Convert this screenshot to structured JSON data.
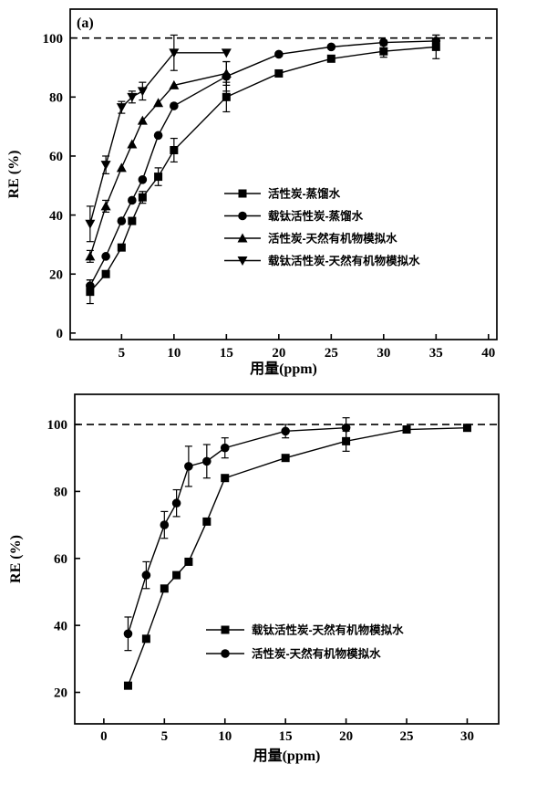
{
  "figure": {
    "background": "#ffffff",
    "ink_color": "#000000",
    "legend_text_color": "#e60000"
  },
  "chart_data": [
    {
      "type": "line",
      "panel_label": "(a)",
      "xlabel": "用量(ppm)",
      "ylabel": "RE (%)",
      "xlim": [
        0.1,
        40.8
      ],
      "ylim": [
        -2.2,
        109.8
      ],
      "xticks": [
        5,
        10,
        15,
        20,
        25,
        30,
        35,
        40
      ],
      "yticks": [
        0,
        20,
        40,
        60,
        80,
        100
      ],
      "reference_line_y": 100,
      "grid": false,
      "legend_position": "center-right",
      "series": [
        {
          "name": "活性炭-蒸馏水",
          "marker": "square",
          "x": [
            2,
            3.5,
            5,
            6,
            7,
            8.5,
            10,
            15,
            20,
            25,
            30,
            35
          ],
          "y": [
            14,
            20,
            29,
            38,
            46,
            53,
            62,
            80,
            88,
            93,
            95.5,
            97
          ],
          "yerr": [
            4,
            0,
            0,
            0,
            2,
            3,
            4,
            5,
            0,
            0,
            2,
            4
          ]
        },
        {
          "name": "载钛活性炭-蒸馏水",
          "marker": "circle",
          "x": [
            2,
            3.5,
            5,
            6,
            7,
            8.5,
            10,
            15,
            20,
            25,
            30,
            35
          ],
          "y": [
            16,
            26,
            38,
            45,
            52,
            67,
            77,
            87,
            94.5,
            97,
            98.5,
            99
          ],
          "yerr": [
            2,
            0,
            0,
            0,
            0,
            0,
            0,
            5,
            0,
            0,
            0,
            2
          ]
        },
        {
          "name": "活性炭-天然有机物模拟水",
          "marker": "triangle-up",
          "x": [
            2,
            3.5,
            5,
            6,
            7,
            8.5,
            10,
            15
          ],
          "y": [
            26,
            43,
            56,
            64,
            72,
            78,
            84,
            88
          ],
          "yerr": [
            2,
            2,
            0,
            0,
            0,
            0,
            0,
            4
          ]
        },
        {
          "name": "载钛活性炭-天然有机物模拟水",
          "marker": "triangle-down",
          "x": [
            2,
            3.5,
            5,
            6,
            7,
            10,
            15
          ],
          "y": [
            37,
            57,
            76.5,
            80,
            82,
            95,
            95
          ],
          "yerr": [
            6,
            3,
            2,
            2,
            3,
            6,
            0
          ]
        }
      ]
    },
    {
      "type": "line",
      "panel_label": "",
      "xlabel": "用量(ppm)",
      "ylabel": "RE (%)",
      "xlim": [
        -2.4,
        32.6
      ],
      "ylim": [
        10.6,
        109
      ],
      "xticks": [
        0,
        5,
        10,
        15,
        20,
        25,
        30
      ],
      "yticks": [
        20,
        40,
        60,
        80,
        100
      ],
      "reference_line_y": 100,
      "grid": false,
      "legend_position": "center-right",
      "series": [
        {
          "name": "载钛活性炭-天然有机物模拟水",
          "marker": "square",
          "x": [
            2,
            3.5,
            5,
            6,
            7,
            8.5,
            10,
            15,
            20,
            25,
            30
          ],
          "y": [
            22,
            36,
            51,
            55,
            59,
            71,
            84,
            90,
            95,
            98.5,
            99
          ],
          "yerr": [
            0,
            0,
            0,
            0,
            0,
            0,
            0,
            0,
            3,
            0,
            0
          ]
        },
        {
          "name": "活性炭-天然有机物模拟水",
          "marker": "circle",
          "x": [
            2,
            3.5,
            5,
            6,
            7,
            8.5,
            10,
            15,
            20
          ],
          "y": [
            37.5,
            55,
            70,
            76.5,
            87.5,
            89,
            93,
            98,
            99
          ],
          "yerr": [
            5,
            4,
            4,
            4,
            6,
            5,
            3,
            2,
            3
          ]
        }
      ]
    }
  ]
}
